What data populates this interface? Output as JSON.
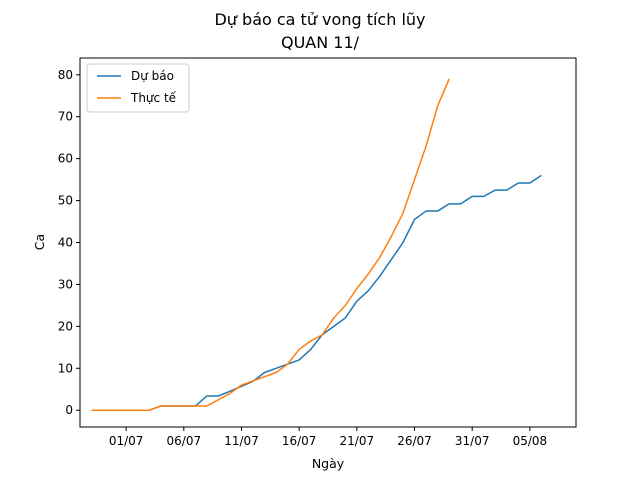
{
  "chart_data": {
    "type": "line",
    "title_line1": "Dự báo ca tử vong tích lũy",
    "title_line2": "QUAN 11/",
    "xlabel": "Ngày",
    "ylabel": "Ca",
    "x_range": [
      "2021-06-27",
      "2021-08-09"
    ],
    "ylim": [
      -4,
      84
    ],
    "x_ticks": [
      "2021-07-01",
      "2021-07-06",
      "2021-07-11",
      "2021-07-16",
      "2021-07-21",
      "2021-07-26",
      "2021-07-31",
      "2021-08-05"
    ],
    "x_tick_labels": [
      "01/07",
      "06/07",
      "11/07",
      "16/07",
      "21/07",
      "26/07",
      "31/07",
      "05/08"
    ],
    "y_ticks": [
      0,
      10,
      20,
      30,
      40,
      50,
      60,
      70,
      80
    ],
    "grid": false,
    "legend_position": "top-left",
    "series": [
      {
        "name": "Dự báo",
        "color": "#1f77b4",
        "x": [
          "2021-06-28",
          "2021-06-29",
          "2021-06-30",
          "2021-07-01",
          "2021-07-02",
          "2021-07-03",
          "2021-07-04",
          "2021-07-05",
          "2021-07-06",
          "2021-07-07",
          "2021-07-08",
          "2021-07-09",
          "2021-07-10",
          "2021-07-11",
          "2021-07-12",
          "2021-07-13",
          "2021-07-14",
          "2021-07-15",
          "2021-07-16",
          "2021-07-17",
          "2021-07-18",
          "2021-07-19",
          "2021-07-20",
          "2021-07-21",
          "2021-07-22",
          "2021-07-23",
          "2021-07-24",
          "2021-07-25",
          "2021-07-26",
          "2021-07-27",
          "2021-07-28",
          "2021-07-29",
          "2021-07-30",
          "2021-07-31",
          "2021-08-01",
          "2021-08-02",
          "2021-08-03",
          "2021-08-04",
          "2021-08-05",
          "2021-08-06",
          "2021-08-07"
        ],
        "y": [
          0,
          0,
          0,
          0,
          0,
          0,
          1,
          1,
          1,
          1,
          3.4,
          3.4,
          4.5,
          5.7,
          6.9,
          9,
          10,
          11,
          12,
          14.5,
          18,
          20,
          22,
          26,
          28.5,
          32,
          36,
          40,
          45.5,
          47.5,
          47.5,
          49.2,
          49.2,
          51,
          51,
          52.5,
          52.5,
          54.2,
          54.2,
          56,
          null
        ]
      },
      {
        "name": "Thực tế",
        "color": "#ff7f0e",
        "x": [
          "2021-06-28",
          "2021-06-29",
          "2021-06-30",
          "2021-07-01",
          "2021-07-02",
          "2021-07-03",
          "2021-07-04",
          "2021-07-05",
          "2021-07-06",
          "2021-07-07",
          "2021-07-08",
          "2021-07-09",
          "2021-07-10",
          "2021-07-11",
          "2021-07-12",
          "2021-07-13",
          "2021-07-14",
          "2021-07-15",
          "2021-07-16",
          "2021-07-17",
          "2021-07-18",
          "2021-07-19",
          "2021-07-20",
          "2021-07-21",
          "2021-07-22",
          "2021-07-23",
          "2021-07-24",
          "2021-07-25",
          "2021-07-26",
          "2021-07-27",
          "2021-07-28",
          "2021-07-29",
          "2021-07-30",
          "2021-07-31"
        ],
        "y": [
          0,
          0,
          0,
          0,
          0,
          0,
          1,
          1,
          1,
          1,
          1,
          2.5,
          4,
          6,
          7,
          8,
          9,
          11,
          14.5,
          16.5,
          18,
          22,
          25,
          29,
          32.5,
          36.5,
          41.5,
          47,
          55,
          63,
          72.5,
          79,
          null,
          null
        ]
      }
    ]
  }
}
